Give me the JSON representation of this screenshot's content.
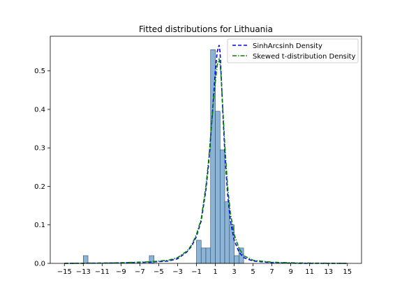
{
  "chart_data": {
    "type": "histogram+line",
    "title": "Fitted distributions for Lithuania",
    "xlabel": "",
    "ylabel": "",
    "xlim": [
      -16.5,
      16.5
    ],
    "ylim": [
      0,
      0.59
    ],
    "xticks": [
      -15,
      -13,
      -11,
      -9,
      -7,
      -5,
      -3,
      -1,
      1,
      3,
      5,
      7,
      9,
      11,
      13,
      15
    ],
    "xtick_labels": [
      "−15",
      "−13",
      "−11",
      "−9",
      "−7",
      "−5",
      "−3",
      "−1",
      "1",
      "3",
      "5",
      "7",
      "9",
      "11",
      "13",
      "15"
    ],
    "yticks": [
      0.0,
      0.1,
      0.2,
      0.3,
      0.4,
      0.5
    ],
    "ytick_labels": [
      "0.0",
      "0.1",
      "0.2",
      "0.3",
      "0.4",
      "0.5"
    ],
    "histogram": {
      "bin_width": 0.5,
      "bins": [
        {
          "x0": -13.0,
          "density": 0.02
        },
        {
          "x0": -6.0,
          "density": 0.02
        },
        {
          "x0": -1.0,
          "density": 0.06
        },
        {
          "x0": -0.5,
          "density": 0.04
        },
        {
          "x0": 0.0,
          "density": 0.04
        },
        {
          "x0": 0.5,
          "density": 0.555
        },
        {
          "x0": 1.0,
          "density": 0.395
        },
        {
          "x0": 1.5,
          "density": 0.295
        },
        {
          "x0": 2.0,
          "density": 0.16
        },
        {
          "x0": 2.5,
          "density": 0.1
        },
        {
          "x0": 3.0,
          "density": 0.02
        },
        {
          "x0": 3.5,
          "density": 0.04
        }
      ]
    },
    "series": [
      {
        "name": "SinhArcsinh Density",
        "style": "dashed",
        "color": "#0000ff",
        "x": [
          -15,
          -10,
          -6,
          -4,
          -3,
          -2,
          -1.5,
          -1,
          -0.5,
          0,
          0.3,
          0.6,
          0.8,
          1.0,
          1.2,
          1.4,
          1.5,
          1.6,
          1.8,
          2.0,
          2.3,
          2.6,
          3.0,
          3.5,
          4,
          5,
          7,
          10,
          15
        ],
        "y": [
          0.0,
          0.001,
          0.003,
          0.006,
          0.012,
          0.03,
          0.045,
          0.07,
          0.11,
          0.19,
          0.26,
          0.36,
          0.43,
          0.5,
          0.55,
          0.567,
          0.55,
          0.5,
          0.39,
          0.29,
          0.18,
          0.11,
          0.06,
          0.03,
          0.015,
          0.006,
          0.002,
          0.0,
          0.0
        ]
      },
      {
        "name": "Skewed t-distribution Density",
        "style": "dashdot",
        "color": "#008000",
        "x": [
          -15,
          -10,
          -6,
          -4,
          -3,
          -2,
          -1.5,
          -1,
          -0.5,
          0,
          0.3,
          0.6,
          0.8,
          1.0,
          1.2,
          1.4,
          1.5,
          1.6,
          1.8,
          2.0,
          2.3,
          2.6,
          3.0,
          3.5,
          4,
          5,
          7,
          10,
          15
        ],
        "y": [
          0.0,
          0.001,
          0.004,
          0.008,
          0.015,
          0.032,
          0.048,
          0.075,
          0.115,
          0.2,
          0.27,
          0.36,
          0.42,
          0.47,
          0.515,
          0.53,
          0.52,
          0.49,
          0.4,
          0.31,
          0.2,
          0.13,
          0.075,
          0.04,
          0.02,
          0.008,
          0.003,
          0.001,
          0.0
        ]
      }
    ],
    "legend": {
      "placement": "top-right"
    },
    "grid": false,
    "colors": {
      "bar_fill": "#8bb4d6",
      "bar_edge": "#2b4a63",
      "axis": "#000000"
    }
  }
}
